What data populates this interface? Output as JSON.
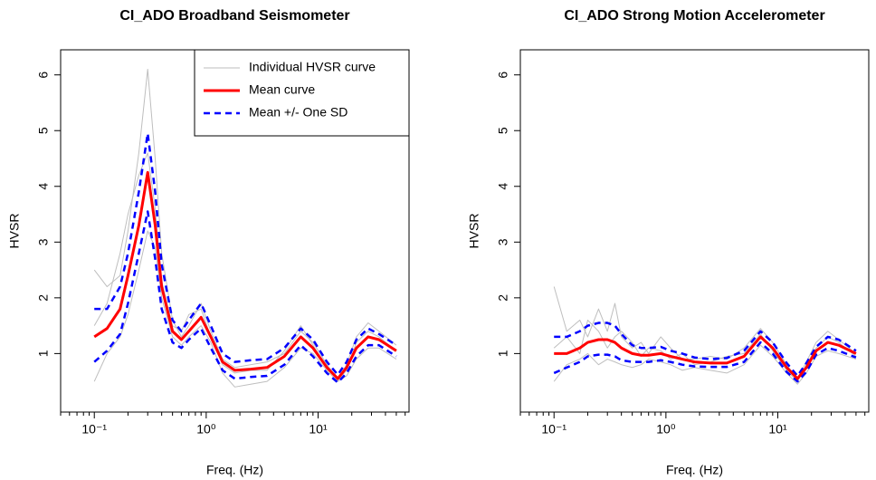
{
  "chart_data": [
    {
      "type": "line",
      "title": "CI_ADO Broadband Seismometer",
      "x_label": "Freq. (Hz)",
      "y_label": "HVSR",
      "log_x": true,
      "legend": true,
      "legend_position": "top-right",
      "xlim": [
        0.05,
        65
      ],
      "ylim": [
        -0.05,
        6.45
      ],
      "xticks": [
        {
          "value": 0.1,
          "label": "10⁻¹"
        },
        {
          "value": 1,
          "label": "10⁰"
        },
        {
          "value": 10,
          "label": "10¹"
        }
      ],
      "yticks": [
        1,
        2,
        3,
        4,
        5,
        6
      ],
      "x": [
        0.1,
        0.13,
        0.17,
        0.2,
        0.25,
        0.3,
        0.35,
        0.4,
        0.5,
        0.6,
        0.7,
        0.9,
        1.1,
        1.4,
        1.8,
        2.5,
        3.5,
        5,
        7,
        9,
        12,
        15,
        18,
        22,
        28,
        35,
        50
      ],
      "series": [
        {
          "name": "Individual HVSR curve",
          "color": "#bebebe",
          "style": "thin",
          "values": [
            2.5,
            2.2,
            2.4,
            3.2,
            4.6,
            6.1,
            4.5,
            2.8,
            1.6,
            1.3,
            1.5,
            1.9,
            1.4,
            0.9,
            0.75,
            0.8,
            0.85,
            1.0,
            1.4,
            1.2,
            0.8,
            0.55,
            0.8,
            1.3,
            1.55,
            1.4,
            1.15
          ]
        },
        {
          "name": "Individual HVSR curve",
          "color": "#bebebe",
          "style": "thin",
          "values": [
            0.5,
            1.0,
            1.3,
            1.7,
            2.5,
            3.2,
            2.9,
            2.0,
            1.3,
            1.15,
            1.3,
            1.5,
            1.2,
            0.65,
            0.4,
            0.45,
            0.5,
            0.75,
            1.1,
            1.0,
            0.7,
            0.5,
            0.6,
            0.9,
            1.1,
            1.1,
            0.9
          ]
        },
        {
          "name": "Individual HVSR curve",
          "color": "#bebebe",
          "style": "thin",
          "values": [
            1.5,
            1.9,
            2.8,
            3.5,
            4.2,
            4.6,
            3.6,
            2.3,
            1.5,
            1.4,
            1.7,
            1.8,
            1.3,
            0.8,
            0.65,
            0.7,
            0.7,
            1.05,
            1.5,
            1.15,
            0.75,
            0.52,
            0.7,
            1.2,
            1.4,
            1.3,
            1.05
          ]
        },
        {
          "name": "Mean curve",
          "color": "#ff0000",
          "style": "thick",
          "values": [
            1.3,
            1.45,
            1.8,
            2.4,
            3.3,
            4.25,
            3.3,
            2.2,
            1.4,
            1.25,
            1.4,
            1.65,
            1.3,
            0.85,
            0.7,
            0.72,
            0.75,
            0.95,
            1.3,
            1.1,
            0.75,
            0.55,
            0.75,
            1.1,
            1.3,
            1.25,
            1.05
          ]
        },
        {
          "name": "Mean +/- One SD",
          "color": "#0000ff",
          "style": "dashed",
          "values": [
            1.8,
            1.8,
            2.2,
            2.8,
            3.9,
            4.95,
            3.9,
            2.6,
            1.6,
            1.4,
            1.6,
            1.9,
            1.5,
            1.0,
            0.85,
            0.88,
            0.9,
            1.1,
            1.45,
            1.25,
            0.85,
            0.62,
            0.85,
            1.25,
            1.45,
            1.35,
            1.15
          ]
        },
        {
          "name": "Mean +/- One SD",
          "color": "#0000ff",
          "style": "dashed",
          "values": [
            0.85,
            1.05,
            1.35,
            1.9,
            2.8,
            3.55,
            2.7,
            1.8,
            1.2,
            1.1,
            1.25,
            1.45,
            1.1,
            0.7,
            0.55,
            0.58,
            0.6,
            0.8,
            1.15,
            0.95,
            0.65,
            0.48,
            0.65,
            0.95,
            1.15,
            1.15,
            0.95
          ]
        }
      ]
    },
    {
      "type": "line",
      "title": "CI_ADO Strong Motion Accelerometer",
      "x_label": "Freq. (Hz)",
      "y_label": "HVSR",
      "log_x": true,
      "legend": false,
      "xlim": [
        0.05,
        65
      ],
      "ylim": [
        -0.05,
        6.45
      ],
      "xticks": [
        {
          "value": 0.1,
          "label": "10⁻¹"
        },
        {
          "value": 1,
          "label": "10⁰"
        },
        {
          "value": 10,
          "label": "10¹"
        }
      ],
      "yticks": [
        1,
        2,
        3,
        4,
        5,
        6
      ],
      "x": [
        0.1,
        0.13,
        0.17,
        0.2,
        0.25,
        0.3,
        0.35,
        0.4,
        0.5,
        0.6,
        0.7,
        0.9,
        1.1,
        1.4,
        1.8,
        2.5,
        3.5,
        5,
        7,
        9,
        12,
        15,
        18,
        22,
        28,
        35,
        50
      ],
      "series": [
        {
          "name": "Individual HVSR curve",
          "color": "#bebebe",
          "style": "thin",
          "values": [
            2.2,
            1.4,
            1.6,
            1.3,
            1.8,
            1.4,
            1.9,
            1.3,
            1.1,
            1.2,
            1.0,
            1.3,
            1.1,
            0.9,
            0.9,
            0.95,
            0.9,
            1.1,
            1.45,
            1.2,
            0.8,
            0.55,
            0.85,
            1.2,
            1.4,
            1.25,
            1.0
          ]
        },
        {
          "name": "Individual HVSR curve",
          "color": "#bebebe",
          "style": "thin",
          "values": [
            0.5,
            0.8,
            0.9,
            1.0,
            0.8,
            0.9,
            0.85,
            0.8,
            0.75,
            0.8,
            0.9,
            0.85,
            0.8,
            0.7,
            0.75,
            0.7,
            0.65,
            0.8,
            1.15,
            0.95,
            0.65,
            0.45,
            0.65,
            0.95,
            1.05,
            1.0,
            0.9
          ]
        },
        {
          "name": "Individual HVSR curve",
          "color": "#bebebe",
          "style": "thin",
          "values": [
            1.1,
            1.3,
            1.0,
            1.6,
            1.4,
            1.1,
            1.3,
            1.4,
            1.2,
            0.95,
            1.1,
            1.05,
            0.9,
            1.0,
            0.8,
            0.85,
            0.95,
            1.0,
            1.35,
            1.05,
            0.7,
            0.5,
            0.8,
            1.1,
            1.3,
            1.2,
            0.95
          ]
        },
        {
          "name": "Mean curve",
          "color": "#ff0000",
          "style": "thick",
          "values": [
            1.0,
            1.0,
            1.1,
            1.2,
            1.25,
            1.25,
            1.2,
            1.1,
            1.0,
            0.97,
            0.97,
            1.0,
            0.95,
            0.9,
            0.85,
            0.83,
            0.83,
            0.95,
            1.3,
            1.1,
            0.75,
            0.55,
            0.75,
            1.05,
            1.2,
            1.15,
            1.0
          ]
        },
        {
          "name": "Mean +/- One SD",
          "color": "#0000ff",
          "style": "dashed",
          "values": [
            1.3,
            1.3,
            1.4,
            1.5,
            1.55,
            1.55,
            1.5,
            1.35,
            1.15,
            1.1,
            1.1,
            1.12,
            1.05,
            1.0,
            0.93,
            0.9,
            0.92,
            1.05,
            1.4,
            1.2,
            0.83,
            0.6,
            0.83,
            1.12,
            1.3,
            1.25,
            1.05
          ]
        },
        {
          "name": "Mean +/- One SD",
          "color": "#0000ff",
          "style": "dashed",
          "values": [
            0.65,
            0.75,
            0.85,
            0.95,
            0.98,
            0.98,
            0.95,
            0.88,
            0.85,
            0.85,
            0.85,
            0.88,
            0.85,
            0.8,
            0.77,
            0.76,
            0.76,
            0.85,
            1.2,
            1.0,
            0.67,
            0.5,
            0.67,
            0.98,
            1.1,
            1.05,
            0.93
          ]
        }
      ]
    }
  ]
}
